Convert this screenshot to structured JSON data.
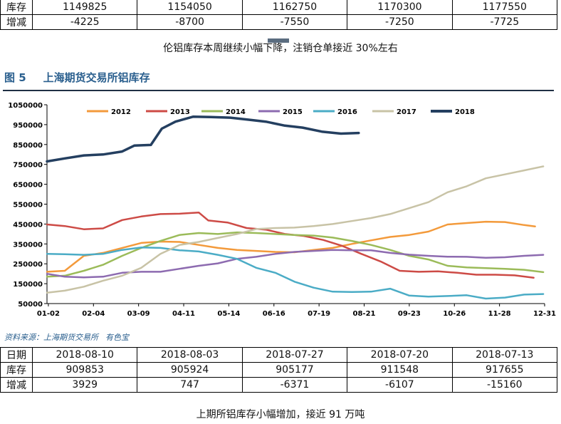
{
  "top_table": {
    "rows": [
      {
        "label": "库存",
        "values": [
          "1149825",
          "1154050",
          "1162750",
          "1170300",
          "1177550"
        ]
      },
      {
        "label": "增减",
        "values": [
          "-4225",
          "-8700",
          "-7550",
          "-7250",
          "-7725"
        ]
      }
    ]
  },
  "caption_top": "伦铝库存本周继续小幅下降，注销仓单接近 30%左右",
  "figure": {
    "number": "图 5",
    "title": "上海期货交易所铝库存"
  },
  "source": {
    "text": "资料来源：上海期货交易所",
    "extra": "有色宝"
  },
  "bottom_table": {
    "header_label": "日期",
    "dates": [
      "2018-08-10",
      "2018-08-03",
      "2018-07-27",
      "2018-07-20",
      "2018-07-13"
    ],
    "rows": [
      {
        "label": "库存",
        "values": [
          "909853",
          "905924",
          "905177",
          "911548",
          "917655"
        ]
      },
      {
        "label": "增减",
        "values": [
          "3929",
          "747",
          "-6371",
          "-6107",
          "-15160"
        ]
      }
    ]
  },
  "caption_bottom": "上期所铝库存小幅增加，接近 91 万吨",
  "chart_data": {
    "type": "line",
    "title": "",
    "xlabel": "",
    "ylabel": "",
    "ylim": [
      50000,
      1050000
    ],
    "yticks": [
      1050000,
      950000,
      850000,
      750000,
      650000,
      550000,
      450000,
      350000,
      250000,
      150000,
      50000
    ],
    "xlim": [
      1,
      365
    ],
    "x_ticks": [
      {
        "label": "01-02",
        "day": 2
      },
      {
        "label": "02-04",
        "day": 35
      },
      {
        "label": "03-09",
        "day": 68
      },
      {
        "label": "04-11",
        "day": 101
      },
      {
        "label": "05-14",
        "day": 134
      },
      {
        "label": "06-16",
        "day": 167
      },
      {
        "label": "07-19",
        "day": 200
      },
      {
        "label": "08-21",
        "day": 233
      },
      {
        "label": "09-23",
        "day": 266
      },
      {
        "label": "10-26",
        "day": 299
      },
      {
        "label": "11-28",
        "day": 332
      },
      {
        "label": "12-31",
        "day": 365
      }
    ],
    "legend_position": "top",
    "grid": false,
    "series": [
      {
        "name": "2012",
        "color": "#f39a3b",
        "points": [
          [
            1,
            210000
          ],
          [
            14,
            215000
          ],
          [
            28,
            290000
          ],
          [
            42,
            305000
          ],
          [
            56,
            330000
          ],
          [
            70,
            355000
          ],
          [
            84,
            362000
          ],
          [
            98,
            360000
          ],
          [
            112,
            345000
          ],
          [
            126,
            330000
          ],
          [
            140,
            320000
          ],
          [
            154,
            315000
          ],
          [
            168,
            310000
          ],
          [
            182,
            308000
          ],
          [
            196,
            320000
          ],
          [
            210,
            330000
          ],
          [
            224,
            350000
          ],
          [
            238,
            368000
          ],
          [
            252,
            385000
          ],
          [
            266,
            395000
          ],
          [
            280,
            412000
          ],
          [
            294,
            448000
          ],
          [
            308,
            455000
          ],
          [
            322,
            462000
          ],
          [
            336,
            460000
          ],
          [
            350,
            445000
          ],
          [
            358,
            438000
          ]
        ]
      },
      {
        "name": "2013",
        "color": "#cd4b46",
        "points": [
          [
            1,
            448000
          ],
          [
            14,
            440000
          ],
          [
            28,
            424000
          ],
          [
            42,
            428000
          ],
          [
            56,
            470000
          ],
          [
            70,
            488000
          ],
          [
            84,
            500000
          ],
          [
            98,
            502000
          ],
          [
            112,
            508000
          ],
          [
            119,
            468000
          ],
          [
            133,
            458000
          ],
          [
            147,
            430000
          ],
          [
            161,
            422000
          ],
          [
            175,
            400000
          ],
          [
            189,
            390000
          ],
          [
            203,
            370000
          ],
          [
            217,
            340000
          ],
          [
            231,
            300000
          ],
          [
            245,
            262000
          ],
          [
            259,
            215000
          ],
          [
            273,
            210000
          ],
          [
            287,
            212000
          ],
          [
            301,
            205000
          ],
          [
            315,
            195000
          ],
          [
            329,
            195000
          ],
          [
            343,
            192000
          ],
          [
            357,
            180000
          ]
        ]
      },
      {
        "name": "2014",
        "color": "#9bbb59",
        "points": [
          [
            1,
            185000
          ],
          [
            14,
            190000
          ],
          [
            28,
            215000
          ],
          [
            42,
            245000
          ],
          [
            56,
            290000
          ],
          [
            70,
            330000
          ],
          [
            84,
            365000
          ],
          [
            98,
            395000
          ],
          [
            112,
            405000
          ],
          [
            126,
            400000
          ],
          [
            140,
            408000
          ],
          [
            154,
            405000
          ],
          [
            168,
            400000
          ],
          [
            182,
            395000
          ],
          [
            196,
            392000
          ],
          [
            210,
            382000
          ],
          [
            224,
            365000
          ],
          [
            238,
            345000
          ],
          [
            252,
            320000
          ],
          [
            266,
            290000
          ],
          [
            280,
            272000
          ],
          [
            294,
            240000
          ],
          [
            308,
            232000
          ],
          [
            322,
            228000
          ],
          [
            336,
            225000
          ],
          [
            350,
            220000
          ],
          [
            364,
            208000
          ]
        ]
      },
      {
        "name": "2015",
        "color": "#8d6bb0",
        "points": [
          [
            1,
            200000
          ],
          [
            14,
            185000
          ],
          [
            28,
            182000
          ],
          [
            42,
            185000
          ],
          [
            56,
            205000
          ],
          [
            70,
            210000
          ],
          [
            84,
            210000
          ],
          [
            98,
            225000
          ],
          [
            112,
            240000
          ],
          [
            126,
            252000
          ],
          [
            140,
            275000
          ],
          [
            154,
            285000
          ],
          [
            168,
            300000
          ],
          [
            182,
            310000
          ],
          [
            196,
            315000
          ],
          [
            210,
            320000
          ],
          [
            224,
            318000
          ],
          [
            238,
            318000
          ],
          [
            252,
            305000
          ],
          [
            266,
            296000
          ],
          [
            280,
            290000
          ],
          [
            294,
            286000
          ],
          [
            308,
            285000
          ],
          [
            322,
            280000
          ],
          [
            336,
            283000
          ],
          [
            350,
            290000
          ],
          [
            364,
            295000
          ]
        ]
      },
      {
        "name": "2016",
        "color": "#4bacc6",
        "points": [
          [
            1,
            300000
          ],
          [
            14,
            298000
          ],
          [
            28,
            295000
          ],
          [
            42,
            300000
          ],
          [
            56,
            320000
          ],
          [
            70,
            332000
          ],
          [
            84,
            330000
          ],
          [
            98,
            318000
          ],
          [
            112,
            312000
          ],
          [
            126,
            295000
          ],
          [
            140,
            275000
          ],
          [
            154,
            230000
          ],
          [
            168,
            205000
          ],
          [
            182,
            160000
          ],
          [
            196,
            130000
          ],
          [
            210,
            110000
          ],
          [
            224,
            108000
          ],
          [
            238,
            110000
          ],
          [
            252,
            125000
          ],
          [
            266,
            90000
          ],
          [
            280,
            85000
          ],
          [
            294,
            88000
          ],
          [
            308,
            92000
          ],
          [
            322,
            75000
          ],
          [
            336,
            80000
          ],
          [
            350,
            95000
          ],
          [
            364,
            98000
          ]
        ]
      },
      {
        "name": "2017",
        "color": "#c8c3a6",
        "points": [
          [
            1,
            105000
          ],
          [
            14,
            115000
          ],
          [
            28,
            135000
          ],
          [
            42,
            165000
          ],
          [
            56,
            190000
          ],
          [
            70,
            230000
          ],
          [
            84,
            300000
          ],
          [
            98,
            345000
          ],
          [
            112,
            360000
          ],
          [
            126,
            380000
          ],
          [
            140,
            400000
          ],
          [
            154,
            425000
          ],
          [
            168,
            430000
          ],
          [
            182,
            432000
          ],
          [
            196,
            440000
          ],
          [
            210,
            450000
          ],
          [
            224,
            465000
          ],
          [
            238,
            480000
          ],
          [
            252,
            500000
          ],
          [
            266,
            530000
          ],
          [
            280,
            560000
          ],
          [
            294,
            610000
          ],
          [
            308,
            640000
          ],
          [
            322,
            680000
          ],
          [
            336,
            700000
          ],
          [
            350,
            720000
          ],
          [
            364,
            740000
          ]
        ]
      },
      {
        "name": "2018",
        "color": "#243f60",
        "points": [
          [
            1,
            765000
          ],
          [
            14,
            780000
          ],
          [
            28,
            795000
          ],
          [
            42,
            800000
          ],
          [
            56,
            815000
          ],
          [
            65,
            845000
          ],
          [
            77,
            848000
          ],
          [
            85,
            930000
          ],
          [
            95,
            965000
          ],
          [
            108,
            990000
          ],
          [
            121,
            988000
          ],
          [
            135,
            985000
          ],
          [
            148,
            975000
          ],
          [
            161,
            965000
          ],
          [
            175,
            945000
          ],
          [
            188,
            935000
          ],
          [
            202,
            915000
          ],
          [
            216,
            905000
          ],
          [
            229,
            908000
          ]
        ]
      }
    ]
  }
}
